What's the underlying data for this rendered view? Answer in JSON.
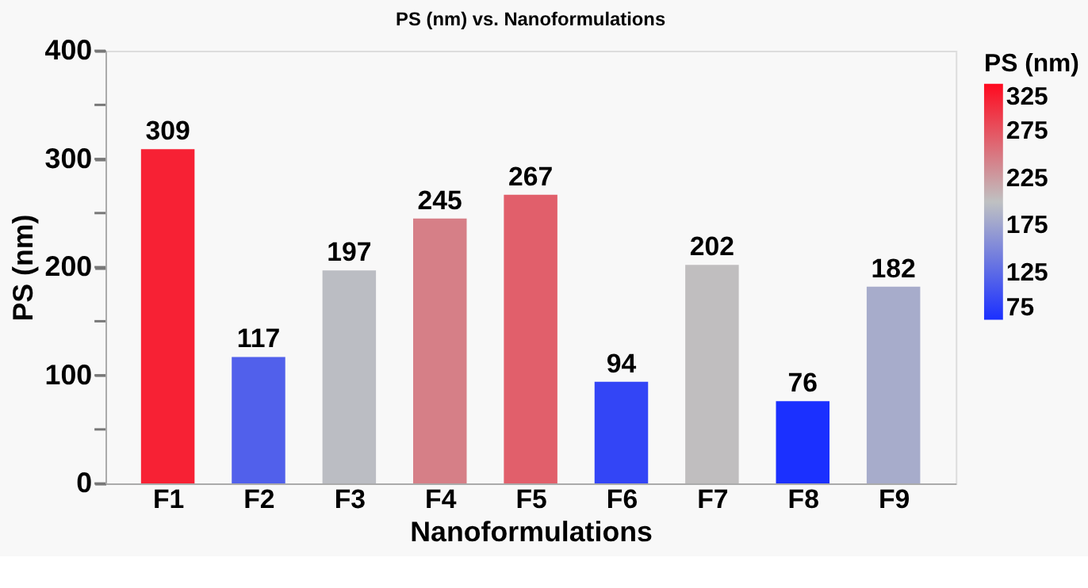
{
  "chart_data": {
    "type": "bar",
    "title": "PS (nm) vs. Nanoformulations",
    "xlabel": "Nanoformulations",
    "ylabel": "PS (nm)",
    "clabel": "PS (nm)",
    "categories": [
      "F1",
      "F2",
      "F3",
      "F4",
      "F5",
      "F6",
      "F7",
      "F8",
      "F9"
    ],
    "values": [
      309,
      117,
      197,
      245,
      267,
      94,
      202,
      76,
      182
    ],
    "ylim": [
      0,
      400
    ],
    "yticks": [
      0,
      {
        "value": 50,
        "label": null
      },
      100,
      {
        "value": 150,
        "label": null
      },
      200,
      {
        "value": 250,
        "label": null
      },
      300,
      {
        "value": 350,
        "label": null
      },
      400
    ],
    "clim": [
      75,
      325
    ],
    "cticks": [
      75,
      125,
      175,
      225,
      275,
      325
    ],
    "data_labels": true,
    "grid": false
  }
}
